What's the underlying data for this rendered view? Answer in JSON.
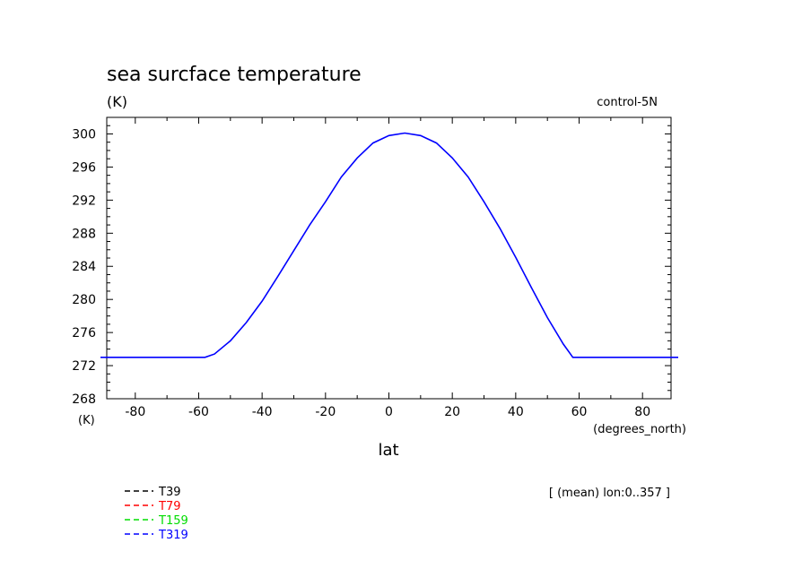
{
  "chart_data": {
    "type": "line",
    "title": "sea surcface temperature",
    "ylabel_unit": "(K)",
    "experiment": "control-5N",
    "ylabel_lower": "(K)",
    "xunit": "(degrees_north)",
    "xlabel": "lat",
    "annotation": "[ (mean) lon:0..357 ]",
    "xlim": [
      -89,
      89
    ],
    "ylim": [
      268,
      302
    ],
    "xticks": [
      -80,
      -60,
      -40,
      -20,
      0,
      20,
      40,
      60,
      80
    ],
    "yticks": [
      268,
      272,
      276,
      280,
      284,
      288,
      292,
      296,
      300
    ],
    "legend_placement": "bottom-left",
    "series": [
      {
        "name": "T39",
        "color": "#000000",
        "x": [],
        "y": []
      },
      {
        "name": "T79",
        "color": "#ff0000",
        "x": [],
        "y": []
      },
      {
        "name": "T159",
        "color": "#00dd00",
        "x": [],
        "y": []
      },
      {
        "name": "T319",
        "color": "#0000ff",
        "x": [
          -89,
          -80,
          -70,
          -60,
          -58,
          -55,
          -50,
          -45,
          -40,
          -35,
          -30,
          -25,
          -20,
          -15,
          -10,
          -5,
          0,
          5,
          10,
          15,
          20,
          25,
          30,
          35,
          40,
          45,
          50,
          55,
          58,
          60,
          70,
          80,
          89
        ],
        "y": [
          273.0,
          273.0,
          273.0,
          273.0,
          273.0,
          273.4,
          275.0,
          277.2,
          279.8,
          282.8,
          285.9,
          289.0,
          291.8,
          294.8,
          297.1,
          298.9,
          299.8,
          300.1,
          299.8,
          298.9,
          297.1,
          294.8,
          291.8,
          288.6,
          285.1,
          281.4,
          277.8,
          274.6,
          273.0,
          273.0,
          273.0,
          273.0,
          273.0
        ]
      }
    ]
  }
}
